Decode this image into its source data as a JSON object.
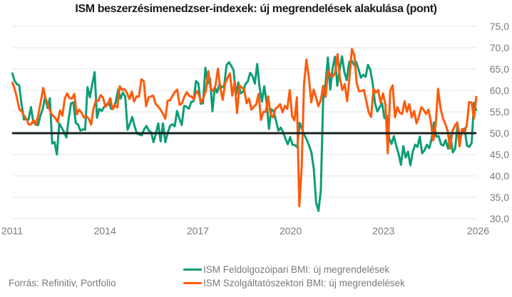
{
  "chart_data": {
    "type": "line",
    "title": "ISM beszerzésimenedzser-indexek: új megrendelések alakulása (pont)",
    "xlabel": "",
    "ylabel": "",
    "x_start": "2011-01",
    "x_frequency": "monthly",
    "xlim": [
      2011.0,
      2026.0
    ],
    "ylim": [
      30,
      75
    ],
    "x_ticks": [
      "2011",
      "2014",
      "2017",
      "2020",
      "2023",
      "2026"
    ],
    "x_tick_values": [
      2011,
      2014,
      2017,
      2020,
      2023,
      2026
    ],
    "y_ticks": [
      "30,0",
      "35,0",
      "40,0",
      "45,0",
      "50,0",
      "55,0",
      "60,0",
      "65,0",
      "70,0",
      "75,0"
    ],
    "y_tick_values": [
      30,
      35,
      40,
      45,
      50,
      55,
      60,
      65,
      70,
      75
    ],
    "reference_line": 50,
    "grid": true,
    "legend_position": "bottom",
    "series": [
      {
        "name": "ISM Feldolgozóipari BMI: új megrendelések",
        "color": "#0c9d77",
        "values": [
          64.2,
          62.3,
          61.5,
          61.2,
          56.9,
          53.2,
          53.3,
          53.2,
          56.1,
          52.6,
          52.0,
          51.9,
          54.1,
          55.7,
          58.5,
          55.9,
          58.2,
          47.6,
          47.9,
          45.0,
          52.3,
          51.3,
          50.3,
          49.0,
          53.3,
          57.0,
          57.2,
          52.4,
          52.0,
          50.6,
          50.9,
          50.8,
          60.8,
          58.4,
          61.5,
          64.3,
          53.6,
          55.7,
          55.2,
          56.1,
          56.6,
          57.3,
          55.7,
          55.8,
          57.4,
          60.2,
          58.1,
          59.5,
          58.6,
          50.8,
          52.2,
          53.8,
          51.6,
          49.9,
          49.7,
          49.5,
          50.9,
          51.7,
          50.6,
          50.2,
          47.9,
          49.9,
          52.3,
          48.1,
          52.3,
          47.9,
          50.0,
          51.7,
          52.1,
          51.6,
          55.2,
          53.4,
          51.9,
          56.4,
          56.2,
          55.7,
          57.3,
          57.5,
          62.2,
          61.7,
          56.9,
          57.0,
          65.3,
          61.6,
          62.8,
          55.1,
          60.8,
          59.5,
          61.5,
          60.7,
          61.1,
          65.9,
          66.6,
          65.8,
          64.7,
          58.9,
          61.9,
          59.3,
          59.7,
          61.5,
          62.1,
          64.1,
          63.4,
          61.6,
          66.2,
          60.8,
          57.4,
          61.0,
          57.1,
          51.0,
          55.6,
          55.1,
          52.9,
          50.6,
          51.3,
          50.2,
          48.7,
          47.4,
          49.1,
          47.3,
          47.2,
          46.7,
          52.4,
          51.0,
          49.6,
          48.5,
          47.1,
          45.5,
          41.7,
          33.8,
          31.8,
          36.6,
          58.0,
          61.5,
          67.7,
          60.2,
          65.1,
          67.9,
          61.1,
          64.8,
          68.0,
          64.3,
          62.4,
          66.6,
          67.1,
          66.0,
          66.7,
          64.9,
          63.0,
          63.7,
          63.2,
          66.0,
          64.8,
          61.7,
          57.0,
          55.1,
          56.1,
          57.0,
          53.5,
          54.1,
          48.8,
          47.5,
          49.3,
          47.1,
          45.2,
          42.6,
          47.0,
          44.3,
          45.7,
          42.5,
          45.6,
          47.3,
          46.8,
          49.2,
          45.3,
          46.0,
          47.3,
          46.5,
          48.6,
          52.5,
          49.2,
          49.3,
          47.4,
          47.1,
          48.4,
          46.4,
          49.4,
          45.5,
          46.4,
          52.1,
          48.9,
          50.6,
          51.1,
          47.1,
          46.8,
          47.7,
          57.1,
          55.2
        ]
      },
      {
        "name": "ISM Szolgáltatószektori BMI: új megrendelések",
        "color": "#ff5a0a",
        "values": [
          62.0,
          60.5,
          58.3,
          55.6,
          55.1,
          54.1,
          53.3,
          52.0,
          52.1,
          53.1,
          52.0,
          54.5,
          57.5,
          60.6,
          58.1,
          56.6,
          55.0,
          54.1,
          53.6,
          52.6,
          55.3,
          54.1,
          58.1,
          59.3,
          58.2,
          58.1,
          59.2,
          54.4,
          55.5,
          54.8,
          53.7,
          54.0,
          53.4,
          52.0,
          55.8,
          57.6,
          57.6,
          58.9,
          58.3,
          56.2,
          56.7,
          58.2,
          55.6,
          56.5,
          56.0,
          61.0,
          60.1,
          60.3,
          59.4,
          58.0,
          59.7,
          57.4,
          58.6,
          58.6,
          62.6,
          62.2,
          56.3,
          58.4,
          58.6,
          58.8,
          56.8,
          56.3,
          55.5,
          54.6,
          53.4,
          57.6,
          57.7,
          58.7,
          59.6,
          60.2,
          56.6,
          57.0,
          58.6,
          59.6,
          58.7,
          58.6,
          57.9,
          59.9,
          59.1,
          57.1,
          58.4,
          60.0,
          64.5,
          60.3,
          59.9,
          61.1,
          65.1,
          60.6,
          57.8,
          61.7,
          62.9,
          64.0,
          58.8,
          62.1,
          54.7,
          61.2,
          60.7,
          60.2,
          57.0,
          58.1,
          55.5,
          56.2,
          56.7,
          59.2,
          53.1,
          55.0,
          55.0,
          58.6,
          54.4,
          53.7,
          55.7,
          56.1,
          56.8,
          54.9,
          56.4,
          55.7,
          60.1,
          54.0,
          53.0,
          58.4,
          32.9,
          41.9,
          61.6,
          67.2,
          63.0,
          57.2,
          60.2,
          58.4,
          56.3,
          57.8,
          61.1,
          58.5,
          64.6,
          63.6,
          63.2,
          64.2,
          68.5,
          62.8,
          60.1,
          61.5,
          57.5,
          63.0,
          69.7,
          68.2,
          61.7,
          59.8,
          59.9,
          60.1,
          57.6,
          54.9,
          53.8,
          60.4,
          59.5,
          60.1,
          57.1,
          59.3,
          56.7,
          45.3,
          59.9,
          61.2,
          53.7,
          56.1,
          54.8,
          54.5,
          57.5,
          55.0,
          56.8,
          53.7,
          55.2,
          52.3,
          53.9,
          56.1,
          55.4,
          54.5,
          55.5,
          52.7,
          48.3,
          52.0,
          60.4,
          55.9,
          53.5,
          52.2,
          50.6,
          46.4,
          50.4,
          51.7,
          52.5,
          46.9,
          51.0,
          50.0,
          51.9,
          57.3,
          57.2,
          53.4,
          58.7
        ]
      }
    ]
  },
  "source": "Forrás: Refinitiv, Portfolio"
}
